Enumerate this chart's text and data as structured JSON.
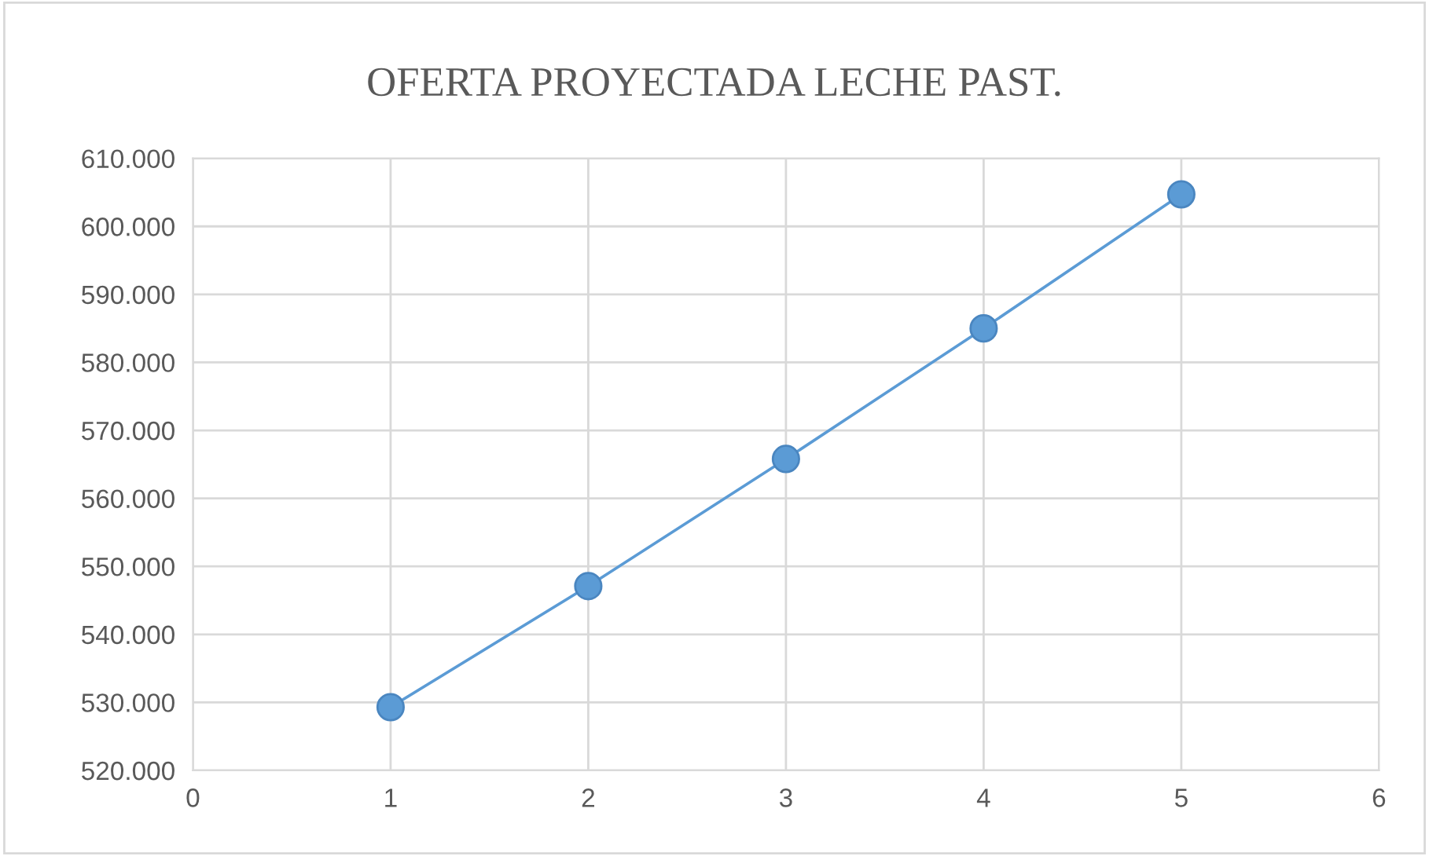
{
  "chart_data": {
    "type": "line",
    "title": "OFERTA PROYECTADA LECHE PAST.",
    "x": [
      1,
      2,
      3,
      4,
      5
    ],
    "series": [
      {
        "color": "#5b9bd5",
        "values": [
          529300,
          547100,
          565800,
          585000,
          604700
        ]
      }
    ],
    "xlim": [
      0,
      6
    ],
    "xticks": [
      0,
      1,
      2,
      3,
      4,
      5,
      6
    ],
    "ylim": [
      520000,
      610000
    ],
    "yticks": [
      {
        "value": 520000,
        "label": "520.000"
      },
      {
        "value": 530000,
        "label": "530.000"
      },
      {
        "value": 540000,
        "label": "540.000"
      },
      {
        "value": 550000,
        "label": "550.000"
      },
      {
        "value": 560000,
        "label": "560.000"
      },
      {
        "value": 570000,
        "label": "570.000"
      },
      {
        "value": 580000,
        "label": "580.000"
      },
      {
        "value": 590000,
        "label": "590.000"
      },
      {
        "value": 600000,
        "label": "600.000"
      },
      {
        "value": 610000,
        "label": "610.000"
      }
    ],
    "grid": true,
    "marker": "circle",
    "line_style": "solid",
    "legend": false
  }
}
